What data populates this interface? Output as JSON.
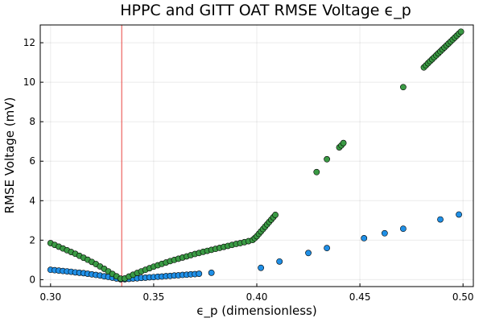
{
  "chart_data": {
    "type": "scatter",
    "title": "HPPC and GITT OAT RMSE Voltage ϵ_p",
    "xlabel": "ϵ_p (dimensionless)",
    "ylabel": "RMSE Voltage (mV)",
    "xlim": [
      0.295,
      0.505
    ],
    "ylim": [
      -0.35,
      12.9
    ],
    "xticks": [
      0.3,
      0.35,
      0.4,
      0.45,
      0.5
    ],
    "xtick_labels": [
      "0.30",
      "0.35",
      "0.40",
      "0.45",
      "0.50"
    ],
    "yticks": [
      0,
      2,
      4,
      6,
      8,
      10,
      12
    ],
    "ytick_labels": [
      "0",
      "2",
      "4",
      "6",
      "8",
      "10",
      "12"
    ],
    "grid": true,
    "legend": "none",
    "vline": {
      "x": 0.3345,
      "color": "#e8423f"
    },
    "series": [
      {
        "color": "#1f8fe6",
        "points": [
          [
            0.3,
            0.5
          ],
          [
            0.302,
            0.48
          ],
          [
            0.304,
            0.46
          ],
          [
            0.306,
            0.44
          ],
          [
            0.308,
            0.42
          ],
          [
            0.31,
            0.4
          ],
          [
            0.312,
            0.37
          ],
          [
            0.314,
            0.35
          ],
          [
            0.316,
            0.33
          ],
          [
            0.318,
            0.3
          ],
          [
            0.32,
            0.27
          ],
          [
            0.322,
            0.24
          ],
          [
            0.324,
            0.21
          ],
          [
            0.326,
            0.17
          ],
          [
            0.328,
            0.14
          ],
          [
            0.33,
            0.1
          ],
          [
            0.332,
            0.06
          ],
          [
            0.334,
            0.02
          ],
          [
            0.336,
            0.02
          ],
          [
            0.338,
            0.04
          ],
          [
            0.34,
            0.06
          ],
          [
            0.342,
            0.07
          ],
          [
            0.344,
            0.09
          ],
          [
            0.346,
            0.1
          ],
          [
            0.348,
            0.12
          ],
          [
            0.35,
            0.13
          ],
          [
            0.352,
            0.15
          ],
          [
            0.354,
            0.16
          ],
          [
            0.356,
            0.18
          ],
          [
            0.358,
            0.19
          ],
          [
            0.36,
            0.21
          ],
          [
            0.362,
            0.22
          ],
          [
            0.364,
            0.24
          ],
          [
            0.366,
            0.25
          ],
          [
            0.368,
            0.27
          ],
          [
            0.37,
            0.28
          ],
          [
            0.372,
            0.3
          ],
          [
            0.378,
            0.35
          ],
          [
            0.402,
            0.6
          ],
          [
            0.411,
            0.92
          ],
          [
            0.425,
            1.35
          ],
          [
            0.434,
            1.6
          ],
          [
            0.452,
            2.1
          ],
          [
            0.462,
            2.35
          ],
          [
            0.471,
            2.58
          ],
          [
            0.489,
            3.05
          ],
          [
            0.498,
            3.3
          ]
        ]
      },
      {
        "color": "#3a9a44",
        "points": [
          [
            0.3,
            1.85
          ],
          [
            0.302,
            1.76
          ],
          [
            0.304,
            1.67
          ],
          [
            0.306,
            1.58
          ],
          [
            0.308,
            1.49
          ],
          [
            0.31,
            1.4
          ],
          [
            0.312,
            1.31
          ],
          [
            0.314,
            1.21
          ],
          [
            0.316,
            1.11
          ],
          [
            0.318,
            1.01
          ],
          [
            0.32,
            0.9
          ],
          [
            0.322,
            0.79
          ],
          [
            0.324,
            0.67
          ],
          [
            0.326,
            0.55
          ],
          [
            0.328,
            0.42
          ],
          [
            0.33,
            0.29
          ],
          [
            0.332,
            0.17
          ],
          [
            0.334,
            0.05
          ],
          [
            0.336,
            0.06
          ],
          [
            0.338,
            0.16
          ],
          [
            0.34,
            0.25
          ],
          [
            0.342,
            0.34
          ],
          [
            0.344,
            0.42
          ],
          [
            0.346,
            0.5
          ],
          [
            0.348,
            0.58
          ],
          [
            0.35,
            0.66
          ],
          [
            0.352,
            0.73
          ],
          [
            0.354,
            0.8
          ],
          [
            0.356,
            0.87
          ],
          [
            0.358,
            0.94
          ],
          [
            0.36,
            1.0
          ],
          [
            0.362,
            1.06
          ],
          [
            0.364,
            1.12
          ],
          [
            0.366,
            1.18
          ],
          [
            0.368,
            1.24
          ],
          [
            0.37,
            1.3
          ],
          [
            0.372,
            1.35
          ],
          [
            0.374,
            1.41
          ],
          [
            0.376,
            1.46
          ],
          [
            0.378,
            1.51
          ],
          [
            0.38,
            1.56
          ],
          [
            0.382,
            1.61
          ],
          [
            0.384,
            1.66
          ],
          [
            0.386,
            1.71
          ],
          [
            0.388,
            1.76
          ],
          [
            0.39,
            1.81
          ],
          [
            0.392,
            1.85
          ],
          [
            0.394,
            1.9
          ],
          [
            0.396,
            1.95
          ],
          [
            0.398,
            2.01
          ],
          [
            0.399,
            2.1
          ],
          [
            0.4,
            2.2
          ],
          [
            0.401,
            2.32
          ],
          [
            0.402,
            2.44
          ],
          [
            0.403,
            2.56
          ],
          [
            0.404,
            2.68
          ],
          [
            0.405,
            2.8
          ],
          [
            0.406,
            2.92
          ],
          [
            0.407,
            3.04
          ],
          [
            0.408,
            3.16
          ],
          [
            0.409,
            3.28
          ],
          [
            0.429,
            5.45
          ],
          [
            0.434,
            6.1
          ],
          [
            0.44,
            6.7
          ],
          [
            0.441,
            6.8
          ],
          [
            0.442,
            6.92
          ],
          [
            0.471,
            9.75
          ],
          [
            0.481,
            10.75
          ],
          [
            0.482,
            10.85
          ],
          [
            0.483,
            10.96
          ],
          [
            0.484,
            11.06
          ],
          [
            0.485,
            11.16
          ],
          [
            0.486,
            11.26
          ],
          [
            0.487,
            11.36
          ],
          [
            0.488,
            11.46
          ],
          [
            0.489,
            11.56
          ],
          [
            0.49,
            11.66
          ],
          [
            0.491,
            11.76
          ],
          [
            0.492,
            11.86
          ],
          [
            0.493,
            11.96
          ],
          [
            0.494,
            12.06
          ],
          [
            0.495,
            12.16
          ],
          [
            0.496,
            12.26
          ],
          [
            0.497,
            12.36
          ],
          [
            0.498,
            12.46
          ],
          [
            0.499,
            12.56
          ]
        ]
      }
    ]
  }
}
